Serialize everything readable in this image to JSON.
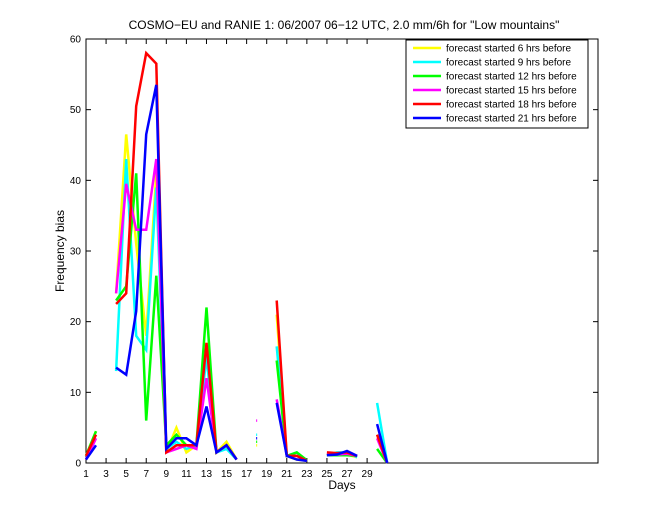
{
  "chart_data": {
    "type": "line",
    "title": "COSMO−EU and RANIE 1: 06/2007 06−12 UTC, 2.0 mm/6h for \"Low mountains\"",
    "xlabel": "Days",
    "ylabel": "Frequency bias",
    "xlim": [
      1,
      52
    ],
    "ylim": [
      0,
      60
    ],
    "xticks": [
      1,
      3,
      5,
      7,
      9,
      11,
      13,
      15,
      17,
      19,
      21,
      23,
      25,
      27,
      29
    ],
    "yticks": [
      0,
      10,
      20,
      30,
      40,
      50,
      60
    ],
    "grid": false,
    "legend_position": "top-right",
    "series": [
      {
        "name": "forecast started 6 hrs before",
        "color": "#ffff00",
        "x": [
          1,
          2,
          3,
          4,
          5,
          6,
          7,
          8,
          9,
          10,
          11,
          12,
          13,
          14,
          15,
          16,
          17,
          18,
          19,
          20,
          21,
          22,
          23,
          24,
          25,
          26,
          27,
          28,
          29,
          30,
          31
        ],
        "values": [
          1,
          4.5,
          null,
          24,
          46.5,
          31,
          18,
          41,
          1.5,
          5,
          1.5,
          2.5,
          17,
          1.5,
          3,
          0.5,
          null,
          2.5,
          null,
          21,
          1,
          0.5,
          0.3,
          null,
          1.3,
          1.2,
          1.2,
          0.8,
          null,
          4,
          0
        ]
      },
      {
        "name": "forecast started 9 hrs before",
        "color": "#00ffff",
        "x": [
          1,
          2,
          3,
          4,
          5,
          6,
          7,
          8,
          9,
          10,
          11,
          12,
          13,
          14,
          15,
          16,
          17,
          18,
          19,
          20,
          21,
          22,
          23,
          24,
          25,
          26,
          27,
          28,
          29,
          30,
          31
        ],
        "values": [
          1,
          3.5,
          null,
          13,
          43,
          18,
          16,
          39,
          2,
          3,
          2,
          2.5,
          15,
          1.5,
          2,
          0.5,
          null,
          4,
          null,
          16.5,
          1,
          1.5,
          0.3,
          null,
          1.1,
          1.5,
          1.5,
          0.8,
          null,
          8.5,
          0
        ]
      },
      {
        "name": "forecast started 12 hrs before",
        "color": "#00ff00",
        "x": [
          1,
          2,
          3,
          4,
          5,
          6,
          7,
          8,
          9,
          10,
          11,
          12,
          13,
          14,
          15,
          16,
          17,
          18,
          19,
          20,
          21,
          22,
          23,
          24,
          25,
          26,
          27,
          28,
          29,
          30,
          31
        ],
        "values": [
          1,
          4.5,
          null,
          23,
          25,
          41,
          6,
          26.5,
          2.5,
          4,
          2.5,
          2.5,
          22,
          1.5,
          2.5,
          0.5,
          null,
          3,
          null,
          14.5,
          1,
          1.5,
          0.4,
          null,
          1.1,
          1.1,
          1.1,
          1,
          null,
          2,
          0
        ]
      },
      {
        "name": "forecast started 15 hrs before",
        "color": "#ff00ff",
        "x": [
          1,
          2,
          3,
          4,
          5,
          6,
          7,
          8,
          9,
          10,
          11,
          12,
          13,
          14,
          15,
          16,
          17,
          18,
          19,
          20,
          21,
          22,
          23,
          24,
          25,
          26,
          27,
          28,
          29,
          30,
          31
        ],
        "values": [
          0.5,
          3.5,
          null,
          24,
          39.5,
          33,
          33,
          43,
          1.5,
          2,
          2.5,
          2,
          12,
          1.5,
          2.5,
          0.5,
          null,
          6,
          null,
          9,
          1,
          1,
          0.3,
          null,
          1.3,
          1.2,
          1.3,
          1,
          null,
          3.5,
          0
        ]
      },
      {
        "name": "forecast started 18 hrs before",
        "color": "#ff0000",
        "x": [
          1,
          2,
          3,
          4,
          5,
          6,
          7,
          8,
          9,
          10,
          11,
          12,
          13,
          14,
          15,
          16,
          17,
          18,
          19,
          20,
          21,
          22,
          23,
          24,
          25,
          26,
          27,
          28,
          29,
          30,
          31
        ],
        "values": [
          1,
          4,
          null,
          22.5,
          24,
          50.5,
          58,
          56.5,
          1.5,
          2.5,
          2.5,
          2.5,
          17,
          1.5,
          2.5,
          0.5,
          null,
          null,
          null,
          23,
          1,
          1,
          0.3,
          null,
          1.5,
          1.4,
          1.5,
          1,
          null,
          4,
          0
        ]
      },
      {
        "name": "forecast started 21 hrs before",
        "color": "#0000ff",
        "x": [
          1,
          2,
          3,
          4,
          5,
          6,
          7,
          8,
          9,
          10,
          11,
          12,
          13,
          14,
          15,
          16,
          17,
          18,
          19,
          20,
          21,
          22,
          23,
          24,
          25,
          26,
          27,
          28,
          29,
          30,
          31
        ],
        "values": [
          0.5,
          2.5,
          null,
          13.5,
          12.5,
          21.5,
          46.5,
          53.5,
          2,
          3.5,
          3.5,
          2.5,
          8,
          1.5,
          2.5,
          0.5,
          null,
          3.5,
          null,
          8.5,
          1,
          0.5,
          0.3,
          null,
          1.1,
          1.2,
          1.7,
          1,
          null,
          5.5,
          0
        ]
      }
    ]
  }
}
